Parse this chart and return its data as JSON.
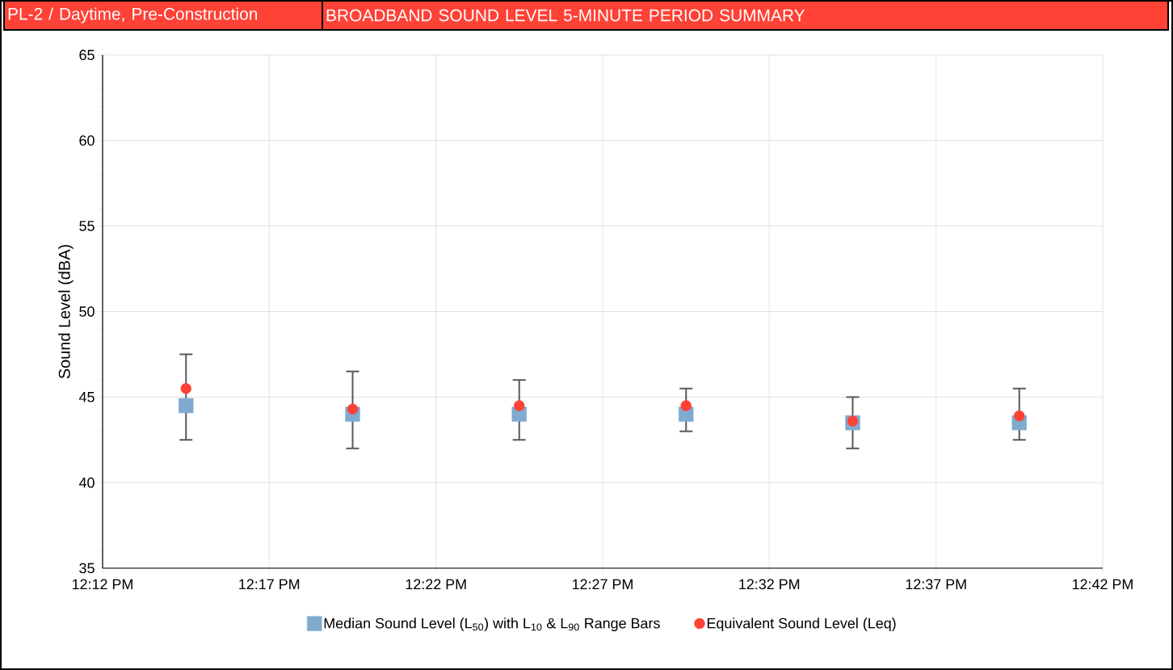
{
  "chart_data": {
    "type": "scatter",
    "title": "PL-2 / Daytime, Pre-Construction",
    "subtitle": "BROADBAND SOUND LEVEL 5-MINUTE PERIOD SUMMARY",
    "ylabel": "Sound Level (dBA)",
    "x": [
      12.2417,
      12.325,
      12.4083,
      12.4917,
      12.575,
      12.6583
    ],
    "series": [
      {
        "name": "Median Sound Level (L$_{50}$) with L$_{10}$ & L$_{90}$ Range Bars",
        "color": "#7fabd0",
        "marker": "square",
        "values": [
          44.5,
          44.0,
          44.0,
          44.0,
          43.5,
          43.5
        ],
        "errors": [
          [
            42.5,
            47.5
          ],
          [
            42.0,
            46.5
          ],
          [
            42.5,
            46.0
          ],
          [
            43.0,
            45.5
          ],
          [
            42.0,
            45.0
          ],
          [
            42.5,
            45.5
          ]
        ]
      },
      {
        "name": "Equivalent Sound Level (Leq)",
        "color": "#ff4136",
        "marker": "circle",
        "values": [
          45.5,
          44.3,
          44.5,
          44.5,
          43.6,
          43.9
        ]
      }
    ],
    "xlim": [
      12.2,
      12.7
    ],
    "xticks": [
      {
        "value": 12.2,
        "label": "12:12 PM"
      },
      {
        "value": 12.2833,
        "label": "12:17 PM"
      },
      {
        "value": 12.3667,
        "label": "12:22 PM"
      },
      {
        "value": 12.45,
        "label": "12:27 PM"
      },
      {
        "value": 12.5333,
        "label": "12:32 PM"
      },
      {
        "value": 12.6167,
        "label": "12:37 PM"
      },
      {
        "value": 12.7,
        "label": "12:42 PM"
      }
    ],
    "ylim": [
      35,
      65
    ],
    "yticks": [
      35,
      40,
      45,
      50,
      55,
      60,
      65
    ],
    "grid": true,
    "legend": "bottom"
  }
}
